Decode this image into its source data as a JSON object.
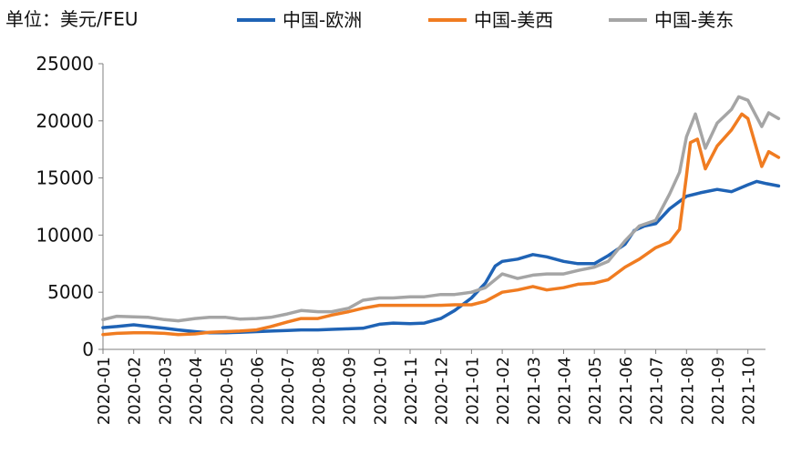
{
  "header": {
    "unit_label": "单位：美元/FEU"
  },
  "chart_data": {
    "type": "line",
    "ylim": [
      0,
      25000
    ],
    "y_ticks": [
      0,
      5000,
      10000,
      15000,
      20000,
      25000
    ],
    "x_ticks": [
      "2020-01",
      "2020-02",
      "2020-03",
      "2020-04",
      "2020-05",
      "2020-06",
      "2020-07",
      "2020-08",
      "2020-09",
      "2020-10",
      "2020-11",
      "2020-12",
      "2021-01",
      "2021-02",
      "2021-03",
      "2021-04",
      "2021-05",
      "2021-06",
      "2021-07",
      "2021-08",
      "2021-09",
      "2021-10"
    ],
    "grid": false,
    "legend_position": "top",
    "series": [
      {
        "name": "中国-欧洲",
        "color": "#1f63b5",
        "points": [
          [
            "2020-01-01",
            1900
          ],
          [
            "2020-01-15",
            2000
          ],
          [
            "2020-02-01",
            2150
          ],
          [
            "2020-02-15",
            2000
          ],
          [
            "2020-03-01",
            1850
          ],
          [
            "2020-03-15",
            1700
          ],
          [
            "2020-04-01",
            1550
          ],
          [
            "2020-04-15",
            1450
          ],
          [
            "2020-05-01",
            1450
          ],
          [
            "2020-05-15",
            1500
          ],
          [
            "2020-06-01",
            1550
          ],
          [
            "2020-06-15",
            1600
          ],
          [
            "2020-07-01",
            1650
          ],
          [
            "2020-07-15",
            1700
          ],
          [
            "2020-08-01",
            1700
          ],
          [
            "2020-08-15",
            1750
          ],
          [
            "2020-09-01",
            1800
          ],
          [
            "2020-09-15",
            1850
          ],
          [
            "2020-10-01",
            2200
          ],
          [
            "2020-10-15",
            2300
          ],
          [
            "2020-11-01",
            2250
          ],
          [
            "2020-11-15",
            2300
          ],
          [
            "2020-12-01",
            2700
          ],
          [
            "2020-12-15",
            3400
          ],
          [
            "2021-01-01",
            4500
          ],
          [
            "2021-01-15",
            5800
          ],
          [
            "2021-01-25",
            7300
          ],
          [
            "2021-02-01",
            7700
          ],
          [
            "2021-02-15",
            7900
          ],
          [
            "2021-03-01",
            8300
          ],
          [
            "2021-03-15",
            8100
          ],
          [
            "2021-04-01",
            7700
          ],
          [
            "2021-04-15",
            7500
          ],
          [
            "2021-05-01",
            7500
          ],
          [
            "2021-05-15",
            8200
          ],
          [
            "2021-06-01",
            9200
          ],
          [
            "2021-06-10",
            10400
          ],
          [
            "2021-06-20",
            10800
          ],
          [
            "2021-07-01",
            11000
          ],
          [
            "2021-07-15",
            12300
          ],
          [
            "2021-08-01",
            13400
          ],
          [
            "2021-08-15",
            13700
          ],
          [
            "2021-09-01",
            14000
          ],
          [
            "2021-09-15",
            13800
          ],
          [
            "2021-10-01",
            14400
          ],
          [
            "2021-10-10",
            14700
          ],
          [
            "2021-10-20",
            14500
          ],
          [
            "2021-11-01",
            14300
          ]
        ]
      },
      {
        "name": "中国-美西",
        "color": "#f07c21",
        "points": [
          [
            "2020-01-01",
            1300
          ],
          [
            "2020-01-15",
            1400
          ],
          [
            "2020-02-01",
            1450
          ],
          [
            "2020-02-15",
            1450
          ],
          [
            "2020-03-01",
            1400
          ],
          [
            "2020-03-15",
            1300
          ],
          [
            "2020-04-01",
            1350
          ],
          [
            "2020-04-15",
            1500
          ],
          [
            "2020-05-01",
            1550
          ],
          [
            "2020-05-15",
            1600
          ],
          [
            "2020-06-01",
            1700
          ],
          [
            "2020-06-15",
            2000
          ],
          [
            "2020-07-01",
            2400
          ],
          [
            "2020-07-15",
            2700
          ],
          [
            "2020-08-01",
            2700
          ],
          [
            "2020-08-15",
            3000
          ],
          [
            "2020-09-01",
            3300
          ],
          [
            "2020-09-15",
            3600
          ],
          [
            "2020-10-01",
            3850
          ],
          [
            "2020-10-15",
            3850
          ],
          [
            "2020-11-01",
            3850
          ],
          [
            "2020-11-15",
            3850
          ],
          [
            "2020-12-01",
            3850
          ],
          [
            "2020-12-15",
            3900
          ],
          [
            "2021-01-01",
            3900
          ],
          [
            "2021-01-15",
            4200
          ],
          [
            "2021-02-01",
            5000
          ],
          [
            "2021-02-15",
            5200
          ],
          [
            "2021-03-01",
            5500
          ],
          [
            "2021-03-15",
            5200
          ],
          [
            "2021-04-01",
            5400
          ],
          [
            "2021-04-15",
            5700
          ],
          [
            "2021-05-01",
            5800
          ],
          [
            "2021-05-15",
            6100
          ],
          [
            "2021-06-01",
            7200
          ],
          [
            "2021-06-15",
            7900
          ],
          [
            "2021-07-01",
            8900
          ],
          [
            "2021-07-15",
            9400
          ],
          [
            "2021-07-25",
            10500
          ],
          [
            "2021-08-01",
            15200
          ],
          [
            "2021-08-05",
            18100
          ],
          [
            "2021-08-12",
            18400
          ],
          [
            "2021-08-20",
            15800
          ],
          [
            "2021-09-01",
            17800
          ],
          [
            "2021-09-15",
            19200
          ],
          [
            "2021-09-25",
            20600
          ],
          [
            "2021-10-01",
            20200
          ],
          [
            "2021-10-15",
            16000
          ],
          [
            "2021-10-22",
            17300
          ],
          [
            "2021-11-01",
            16800
          ]
        ]
      },
      {
        "name": "中国-美东",
        "color": "#a5a5a5",
        "points": [
          [
            "2020-01-01",
            2600
          ],
          [
            "2020-01-15",
            2900
          ],
          [
            "2020-02-01",
            2850
          ],
          [
            "2020-02-15",
            2800
          ],
          [
            "2020-03-01",
            2600
          ],
          [
            "2020-03-15",
            2500
          ],
          [
            "2020-04-01",
            2700
          ],
          [
            "2020-04-15",
            2800
          ],
          [
            "2020-05-01",
            2800
          ],
          [
            "2020-05-15",
            2650
          ],
          [
            "2020-06-01",
            2700
          ],
          [
            "2020-06-15",
            2800
          ],
          [
            "2020-07-01",
            3100
          ],
          [
            "2020-07-15",
            3400
          ],
          [
            "2020-08-01",
            3300
          ],
          [
            "2020-08-15",
            3300
          ],
          [
            "2020-09-01",
            3600
          ],
          [
            "2020-09-15",
            4300
          ],
          [
            "2020-10-01",
            4500
          ],
          [
            "2020-10-15",
            4500
          ],
          [
            "2020-11-01",
            4600
          ],
          [
            "2020-11-15",
            4600
          ],
          [
            "2020-12-01",
            4800
          ],
          [
            "2020-12-15",
            4800
          ],
          [
            "2021-01-01",
            5000
          ],
          [
            "2021-01-15",
            5400
          ],
          [
            "2021-02-01",
            6600
          ],
          [
            "2021-02-15",
            6200
          ],
          [
            "2021-03-01",
            6500
          ],
          [
            "2021-03-15",
            6600
          ],
          [
            "2021-04-01",
            6600
          ],
          [
            "2021-04-15",
            6900
          ],
          [
            "2021-05-01",
            7200
          ],
          [
            "2021-05-15",
            7700
          ],
          [
            "2021-06-01",
            9500
          ],
          [
            "2021-06-15",
            10800
          ],
          [
            "2021-07-01",
            11300
          ],
          [
            "2021-07-15",
            13600
          ],
          [
            "2021-07-25",
            15500
          ],
          [
            "2021-08-01",
            18600
          ],
          [
            "2021-08-10",
            20600
          ],
          [
            "2021-08-20",
            17600
          ],
          [
            "2021-09-01",
            19800
          ],
          [
            "2021-09-15",
            21000
          ],
          [
            "2021-09-22",
            22100
          ],
          [
            "2021-10-01",
            21800
          ],
          [
            "2021-10-15",
            19500
          ],
          [
            "2021-10-22",
            20700
          ],
          [
            "2021-11-01",
            20200
          ]
        ]
      }
    ]
  }
}
